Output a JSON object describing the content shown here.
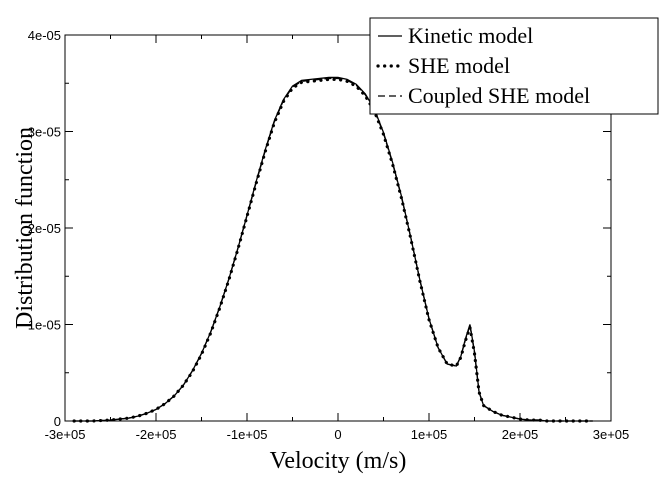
{
  "chart_data": {
    "type": "line",
    "title": "",
    "xlabel": "Velocity (m/s)",
    "ylabel": "Distribution function",
    "xlim": [
      -300000,
      300000
    ],
    "ylim": [
      0,
      4e-05
    ],
    "xticks": [
      -300000,
      -200000,
      -100000,
      0,
      100000,
      200000,
      300000
    ],
    "xtick_labels": [
      "-3e+05",
      "-2e+05",
      "-1e+05",
      "0",
      "1e+05",
      "2e+05",
      "3e+05"
    ],
    "yticks": [
      0,
      1e-05,
      2e-05,
      3e-05,
      4e-05
    ],
    "ytick_labels": [
      "0",
      "1e-05",
      "2e-05",
      "3e-05",
      "4e-05"
    ],
    "grid": false,
    "legend_position": "top-right",
    "series": [
      {
        "name": "Kinetic model",
        "style": "solid",
        "x": [
          -290000,
          -270000,
          -250000,
          -240000,
          -230000,
          -220000,
          -210000,
          -200000,
          -190000,
          -180000,
          -170000,
          -160000,
          -150000,
          -140000,
          -130000,
          -120000,
          -110000,
          -100000,
          -90000,
          -80000,
          -70000,
          -60000,
          -50000,
          -40000,
          -30000,
          -20000,
          -10000,
          0,
          10000,
          20000,
          30000,
          40000,
          50000,
          60000,
          70000,
          80000,
          90000,
          100000,
          110000,
          120000,
          130000,
          135000,
          140000,
          145000,
          150000,
          155000,
          160000,
          170000,
          180000,
          190000,
          200000,
          210000,
          220000,
          230000,
          240000,
          250000,
          260000,
          280000
        ],
        "y": [
          0.0,
          0.0,
          1e-07,
          2e-07,
          3e-07,
          5e-07,
          8e-07,
          1.2e-06,
          1.8e-06,
          2.6e-06,
          3.7e-06,
          5.2e-06,
          7e-06,
          9.2e-06,
          1.18e-05,
          1.47e-05,
          1.79e-05,
          2.13e-05,
          2.48e-05,
          2.81e-05,
          3.11e-05,
          3.33e-05,
          3.47e-05,
          3.53e-05,
          3.54e-05,
          3.55e-05,
          3.56e-05,
          3.56e-05,
          3.54e-05,
          3.49e-05,
          3.39e-05,
          3.23e-05,
          2.99e-05,
          2.68e-05,
          2.32e-05,
          1.9e-05,
          1.46e-05,
          1.06e-05,
          7.6e-06,
          5.9e-06,
          5.7e-06,
          6.7e-06,
          8.5e-06,
          1e-05,
          7.2e-06,
          3e-06,
          1.6e-06,
          1e-06,
          6e-07,
          4e-07,
          2e-07,
          1e-07,
          1e-07,
          0.0,
          0.0,
          0.0,
          0.0,
          0.0
        ]
      },
      {
        "name": "SHE model",
        "style": "dotted",
        "x": [
          -290000,
          -270000,
          -250000,
          -240000,
          -230000,
          -220000,
          -210000,
          -200000,
          -190000,
          -180000,
          -170000,
          -160000,
          -150000,
          -140000,
          -130000,
          -120000,
          -110000,
          -100000,
          -90000,
          -80000,
          -70000,
          -60000,
          -50000,
          -40000,
          -30000,
          -20000,
          -10000,
          0,
          10000,
          20000,
          30000,
          40000,
          50000,
          60000,
          70000,
          80000,
          90000,
          100000,
          110000,
          120000,
          130000,
          135000,
          140000,
          145000,
          150000,
          155000,
          160000,
          170000,
          180000,
          190000,
          200000,
          210000,
          220000,
          230000,
          240000,
          250000,
          260000,
          280000
        ],
        "y": [
          0.0,
          0.0,
          1e-07,
          2e-07,
          3e-07,
          5e-07,
          8e-07,
          1.2e-06,
          1.8e-06,
          2.6e-06,
          3.7e-06,
          5.1e-06,
          6.9e-06,
          9.1e-06,
          1.17e-05,
          1.46e-05,
          1.78e-05,
          2.12e-05,
          2.46e-05,
          2.79e-05,
          3.09e-05,
          3.31e-05,
          3.45e-05,
          3.51e-05,
          3.52e-05,
          3.53e-05,
          3.54e-05,
          3.54e-05,
          3.52e-05,
          3.47e-05,
          3.37e-05,
          3.21e-05,
          2.97e-05,
          2.66e-05,
          2.3e-05,
          1.89e-05,
          1.45e-05,
          1.05e-05,
          7.6e-06,
          5.9e-06,
          5.7e-06,
          6.6e-06,
          8.3e-06,
          9.7e-06,
          7e-06,
          3e-06,
          1.6e-06,
          1e-06,
          6e-07,
          4e-07,
          2e-07,
          1e-07,
          1e-07,
          0.0,
          0.0,
          0.0,
          0.0,
          0.0
        ]
      },
      {
        "name": "Coupled SHE model",
        "style": "dashed",
        "x": [
          -290000,
          -270000,
          -250000,
          -240000,
          -230000,
          -220000,
          -210000,
          -200000,
          -190000,
          -180000,
          -170000,
          -160000,
          -150000,
          -140000,
          -130000,
          -120000,
          -110000,
          -100000,
          -90000,
          -80000,
          -70000,
          -60000,
          -50000,
          -40000,
          -30000,
          -20000,
          -10000,
          0,
          10000,
          20000,
          30000,
          40000,
          50000,
          60000,
          70000,
          80000,
          90000,
          100000,
          110000,
          120000,
          130000,
          135000,
          140000,
          145000,
          150000,
          155000,
          160000,
          170000,
          180000,
          190000,
          200000,
          210000,
          220000,
          230000,
          240000,
          250000,
          260000,
          280000
        ],
        "y": [
          0.0,
          0.0,
          1e-07,
          2e-07,
          3e-07,
          5e-07,
          8e-07,
          1.2e-06,
          1.8e-06,
          2.6e-06,
          3.7e-06,
          5.2e-06,
          7e-06,
          9.2e-06,
          1.18e-05,
          1.47e-05,
          1.79e-05,
          2.13e-05,
          2.47e-05,
          2.8e-05,
          3.1e-05,
          3.32e-05,
          3.46e-05,
          3.52e-05,
          3.53e-05,
          3.54e-05,
          3.55e-05,
          3.55e-05,
          3.53e-05,
          3.48e-05,
          3.38e-05,
          3.22e-05,
          2.98e-05,
          2.67e-05,
          2.31e-05,
          1.9e-05,
          1.46e-05,
          1.06e-05,
          7.6e-06,
          5.9e-06,
          5.7e-06,
          6.7e-06,
          8.4e-06,
          9.9e-06,
          7.1e-06,
          3e-06,
          1.6e-06,
          1e-06,
          6e-07,
          4e-07,
          2e-07,
          1e-07,
          1e-07,
          0.0,
          0.0,
          0.0,
          0.0,
          0.0
        ]
      }
    ]
  }
}
